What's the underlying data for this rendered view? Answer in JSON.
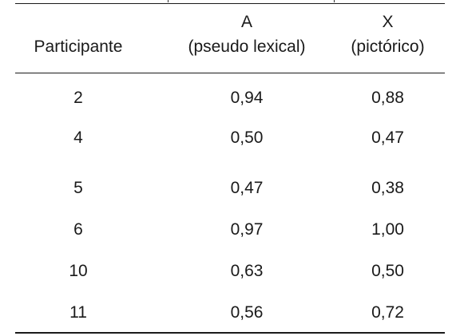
{
  "table": {
    "header": {
      "participant": "Participante",
      "col_a_line1": "A",
      "col_a_line2": "(pseudo lexical)",
      "col_x_line1": "X",
      "col_x_line2": "(pictórico)"
    },
    "rows": [
      {
        "participant": "2",
        "a": "0,94",
        "x": "0,88"
      },
      {
        "participant": "4",
        "a": "0,50",
        "x": "0,47"
      },
      {
        "participant": "5",
        "a": "0,47",
        "x": "0,38"
      },
      {
        "participant": "6",
        "a": "0,97",
        "x": "1,00"
      },
      {
        "participant": "10",
        "a": "0,63",
        "x": "0,50"
      },
      {
        "participant": "11",
        "a": "0,56",
        "x": "0,72"
      }
    ]
  }
}
